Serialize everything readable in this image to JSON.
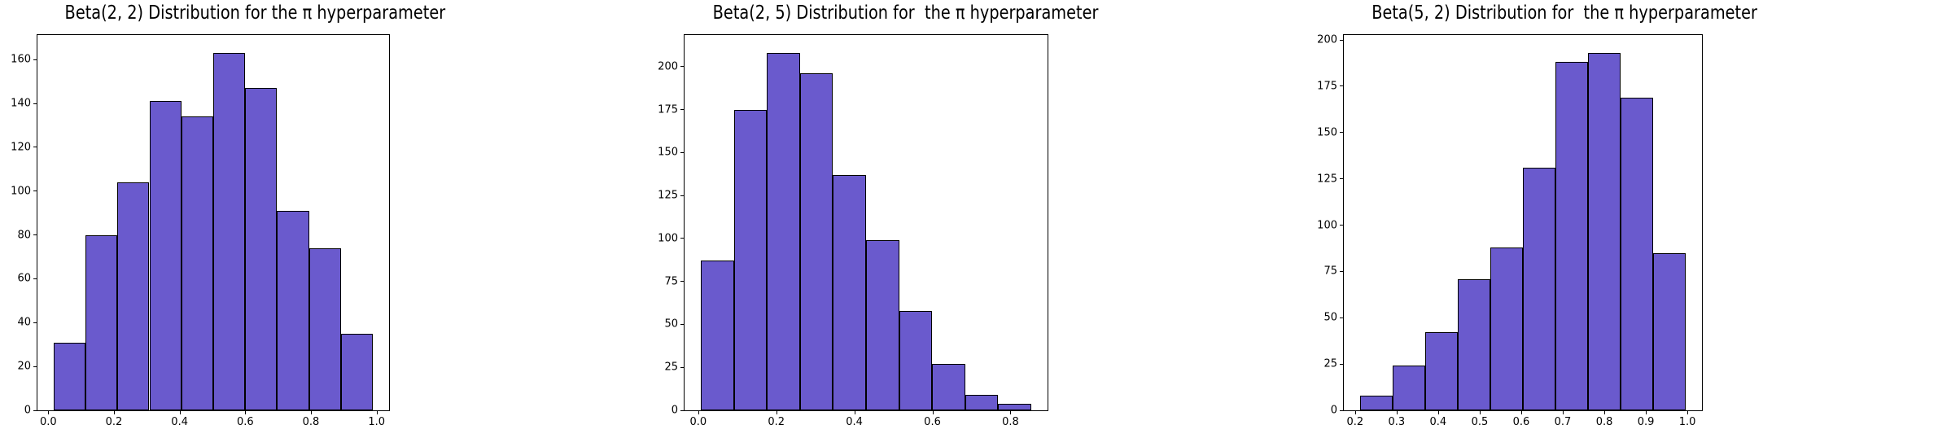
{
  "figure": {
    "background": "#ffffff",
    "text_color": "#000000",
    "spine_color": "#000000"
  },
  "chart_data": [
    {
      "type": "bar",
      "subtype": "histogram",
      "title": "Beta(2, 2) Distribution for the π hyperparameter",
      "xlabel": "",
      "ylabel": "",
      "grid": false,
      "legend": null,
      "bar_color": "#6A5ACD",
      "edge_color": "#000000",
      "bins_start": 0.016,
      "bin_width": 0.0973,
      "values": [
        31,
        80,
        104,
        141,
        134,
        163,
        147,
        91,
        74,
        35
      ],
      "xlim": [
        -0.033,
        1.038
      ],
      "ylim": [
        0,
        171.2
      ],
      "xticks": [
        0.0,
        0.2,
        0.4,
        0.6,
        0.8,
        1.0
      ],
      "xtick_labels": [
        "0.0",
        "0.2",
        "0.4",
        "0.6",
        "0.8",
        "1.0"
      ],
      "yticks": [
        0,
        20,
        40,
        60,
        80,
        100,
        120,
        140,
        160
      ],
      "ytick_labels": [
        "0",
        "20",
        "40",
        "60",
        "80",
        "100",
        "120",
        "140",
        "160"
      ]
    },
    {
      "type": "bar",
      "subtype": "histogram",
      "title": "Beta(2, 5) Distribution for  the π hyperparameter",
      "xlabel": "",
      "ylabel": "",
      "grid": false,
      "legend": null,
      "bar_color": "#6A5ACD",
      "edge_color": "#000000",
      "bins_start": 0.007,
      "bin_width": 0.0846,
      "values": [
        87,
        175,
        208,
        196,
        137,
        99,
        58,
        27,
        9,
        4
      ],
      "xlim": [
        -0.035,
        0.895
      ],
      "ylim": [
        0,
        218.4
      ],
      "xticks": [
        0.0,
        0.2,
        0.4,
        0.6,
        0.8
      ],
      "xtick_labels": [
        "0.0",
        "0.2",
        "0.4",
        "0.6",
        "0.8"
      ],
      "yticks": [
        0,
        25,
        50,
        75,
        100,
        125,
        150,
        175,
        200
      ],
      "ytick_labels": [
        "0",
        "25",
        "50",
        "75",
        "100",
        "125",
        "150",
        "175",
        "200"
      ]
    },
    {
      "type": "bar",
      "subtype": "histogram",
      "title": "Beta(5, 2) Distribution for  the π hyperparameter",
      "xlabel": "",
      "ylabel": "",
      "grid": false,
      "legend": null,
      "bar_color": "#6A5ACD",
      "edge_color": "#000000",
      "bins_start": 0.212,
      "bin_width": 0.0784,
      "values": [
        8,
        24,
        42,
        71,
        88,
        131,
        188,
        193,
        169,
        85
      ],
      "xlim": [
        0.173,
        1.035
      ],
      "ylim": [
        0,
        202.7
      ],
      "xticks": [
        0.2,
        0.3,
        0.4,
        0.5,
        0.6,
        0.7,
        0.8,
        0.9,
        1.0
      ],
      "xtick_labels": [
        "0.2",
        "0.3",
        "0.4",
        "0.5",
        "0.6",
        "0.7",
        "0.8",
        "0.9",
        "1.0"
      ],
      "yticks": [
        0,
        25,
        50,
        75,
        100,
        125,
        150,
        175,
        200
      ],
      "ytick_labels": [
        "0",
        "25",
        "50",
        "75",
        "100",
        "125",
        "150",
        "175",
        "200"
      ]
    }
  ]
}
